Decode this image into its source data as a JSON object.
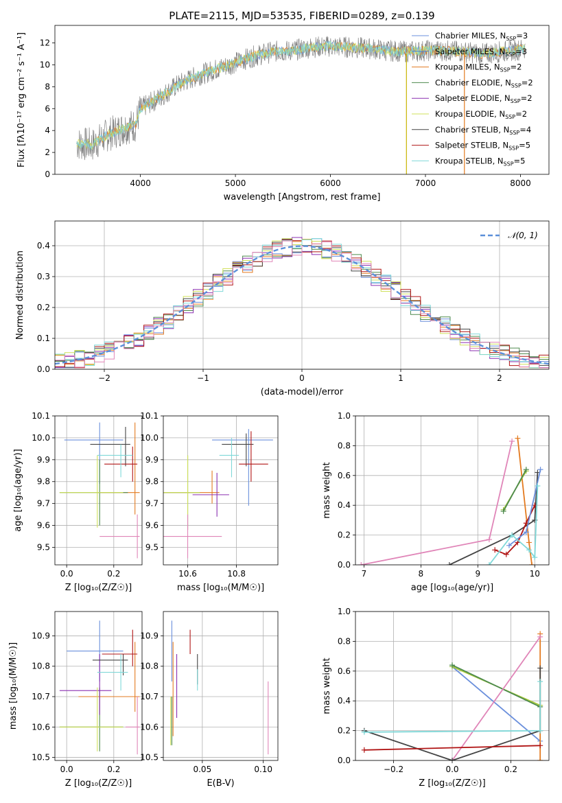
{
  "figure": {
    "title": "PLATE=2115, MJD=53535, FIBERID=0289, z=0.139"
  },
  "colors": {
    "Chabrier MILES": "#6a8fdc",
    "Salpeter MILES": "#4a7fd0",
    "Kroupa MILES": "#e37a1f",
    "Chabrier ELODIE": "#4d8a4d",
    "Salpeter ELODIE": "#8a2fb0",
    "Kroupa ELODIE": "#cfe05a",
    "Chabrier STELIB": "#444444",
    "Salpeter STELIB": "#b01414",
    "Kroupa STELIB": "#7fd8d8",
    "pink": "#e085b8",
    "yellowgreen": "#a8c83a",
    "spectrum_grey": "#808080",
    "normal_curve": "#5b8fd9"
  },
  "chart_data": [
    {
      "id": "spectrum",
      "type": "line",
      "xlabel": "wavelength [Angstrom, rest frame]",
      "ylabel": "Flux [fλ10⁻¹⁷ erg cm⁻² s⁻¹ A⁻¹]",
      "xlim": [
        3100,
        8300
      ],
      "ylim": [
        0,
        13.6
      ],
      "xticks": [
        4000,
        5000,
        6000,
        7000,
        8000
      ],
      "yticks": [
        0,
        2,
        4,
        6,
        8,
        10,
        12
      ],
      "legend": [
        "Chabrier MILES, N_SSP=3",
        "Salpeter MILES, N_SSP=3",
        "Kroupa MILES, N_SSP=2",
        "Chabrier ELODIE, N_SSP=2",
        "Salpeter ELODIE, N_SSP=2",
        "Kroupa ELODIE, N_SSP=2",
        "Chabrier STELIB, N_SSP=4",
        "Salpeter STELIB, N_SSP=5",
        "Kroupa STELIB, N_SSP=5"
      ],
      "legend_text": [
        {
          "pre": "Chabrier MILES, N",
          "sub": "SSP",
          "post": "=3"
        },
        {
          "pre": "Salpeter MILES, N",
          "sub": "SSP",
          "post": "=3"
        },
        {
          "pre": "Kroupa MILES, N",
          "sub": "SSP",
          "post": "=2"
        },
        {
          "pre": "Chabrier ELODIE, N",
          "sub": "SSP",
          "post": "=2"
        },
        {
          "pre": "Salpeter ELODIE, N",
          "sub": "SSP",
          "post": "=2"
        },
        {
          "pre": "Kroupa ELODIE, N",
          "sub": "SSP",
          "post": "=2"
        },
        {
          "pre": "Chabrier STELIB, N",
          "sub": "SSP",
          "post": "=4"
        },
        {
          "pre": "Salpeter STELIB, N",
          "sub": "SSP",
          "post": "=5"
        },
        {
          "pre": "Kroupa STELIB, N",
          "sub": "SSP",
          "post": "=5"
        }
      ],
      "continuum_x": [
        3330,
        3500,
        3650,
        3850,
        3950,
        4000,
        4200,
        4400,
        4600,
        4800,
        5000,
        5200,
        5400,
        5600,
        5800,
        6000,
        6200,
        6400,
        6600,
        6800,
        7000,
        7200,
        7400,
        7600,
        7800,
        8000,
        8050
      ],
      "continuum_y": [
        2.8,
        2.7,
        3.6,
        4.3,
        4.5,
        6.0,
        7.0,
        8.2,
        9.0,
        9.6,
        10.2,
        10.8,
        11.2,
        11.3,
        11.6,
        11.7,
        11.6,
        11.5,
        11.3,
        11.2,
        11.3,
        11.3,
        11.2,
        11.0,
        11.2,
        11.4,
        11.5
      ]
    },
    {
      "id": "residuals",
      "type": "area",
      "xlabel": "(data-model)/error",
      "ylabel": "Normed distribution",
      "xlim": [
        -2.5,
        2.5
      ],
      "ylim": [
        0,
        0.48
      ],
      "xticks": [
        -2,
        -1,
        0,
        1,
        2
      ],
      "xticklabels": [
        "−2",
        "−1",
        "0",
        "1",
        "2"
      ],
      "yticks": [
        0.0,
        0.1,
        0.2,
        0.3,
        0.4
      ],
      "yticklabels": [
        "0.0",
        "0.1",
        "0.2",
        "0.3",
        "0.4"
      ],
      "legend": [
        "𝒩(0, 1)"
      ],
      "bin_width": 0.1
    },
    {
      "id": "age_vs_Z",
      "type": "scatter",
      "xlabel": "Z [log₁₀(Z/Z☉)]",
      "ylabel": "age  [log₁₀(age/yr)]",
      "xlim": [
        -0.05,
        0.32
      ],
      "ylim": [
        9.42,
        10.1
      ],
      "xticks": [
        0.0,
        0.2
      ],
      "xticklabels": [
        "0.0",
        "0.2"
      ],
      "yticks": [
        9.5,
        9.6,
        9.7,
        9.8,
        9.9,
        10.0,
        10.1
      ],
      "yticklabels": [
        "9.5",
        "9.6",
        "9.7",
        "9.8",
        "9.9",
        "10.0",
        "10.1"
      ],
      "points": [
        {
          "c": "Chabrier MILES",
          "x": 0.14,
          "y": 9.99,
          "xerr": [
            0.15,
            0.1
          ],
          "yerr": [
            0.2,
            0.08
          ]
        },
        {
          "c": "Kroupa MILES",
          "x": 0.29,
          "y": 9.75,
          "xerr": [
            0.15,
            0.02
          ],
          "yerr": [
            0.1,
            0.32
          ]
        },
        {
          "c": "Chabrier ELODIE",
          "x": 0.14,
          "y": 9.75,
          "xerr": [
            0.17,
            0.12
          ],
          "yerr": [
            0.15,
            0.15
          ]
        },
        {
          "c": "Kroupa ELODIE",
          "x": 0.13,
          "y": 9.75,
          "xerr": [
            0.16,
            0.11
          ],
          "yerr": [
            0.16,
            0.17
          ]
        },
        {
          "c": "Chabrier STELIB",
          "x": 0.25,
          "y": 9.97,
          "xerr": [
            0.15,
            0.02
          ],
          "yerr": [
            0.1,
            0.08
          ]
        },
        {
          "c": "Salpeter STELIB",
          "x": 0.28,
          "y": 9.88,
          "xerr": [
            0.12,
            0.02
          ],
          "yerr": [
            0.08,
            0.08
          ]
        },
        {
          "c": "Kroupa STELIB",
          "x": 0.23,
          "y": 9.92,
          "xerr": [
            0.1,
            0.05
          ],
          "yerr": [
            0.1,
            0.05
          ]
        },
        {
          "c": "pink",
          "x": 0.3,
          "y": 9.55,
          "xerr": [
            0.16,
            0.01
          ],
          "yerr": [
            0.1,
            0.1
          ]
        }
      ]
    },
    {
      "id": "age_vs_mass",
      "type": "scatter",
      "xlabel": "mass [log₁₀(M/M☉)]",
      "ylabel": "",
      "xlim": [
        10.5,
        10.97
      ],
      "ylim": [
        9.42,
        10.1
      ],
      "xticks": [
        10.6,
        10.8
      ],
      "xticklabels": [
        "10.6",
        "10.8"
      ],
      "yticks": [
        9.5,
        9.6,
        9.7,
        9.8,
        9.9,
        10.0,
        10.1
      ],
      "yticklabels": [
        "9.5",
        "9.6",
        "9.7",
        "9.8",
        "9.9",
        "10.0",
        "10.1"
      ],
      "points": [
        {
          "c": "Chabrier MILES",
          "x": 10.85,
          "y": 9.99,
          "xerr": [
            0.15,
            0.1
          ],
          "yerr": [
            0.3,
            0.05
          ]
        },
        {
          "c": "Kroupa MILES",
          "x": 10.7,
          "y": 9.75,
          "xerr": [
            0.2,
            0.03
          ],
          "yerr": [
            0.05,
            0.1
          ]
        },
        {
          "c": "Chabrier ELODIE",
          "x": 10.6,
          "y": 9.75,
          "xerr": [
            0.1,
            0.05
          ],
          "yerr": [
            0.17,
            0.17
          ]
        },
        {
          "c": "Salpeter ELODIE",
          "x": 10.72,
          "y": 9.74,
          "xerr": [
            0.1,
            0.05
          ],
          "yerr": [
            0.1,
            0.1
          ]
        },
        {
          "c": "Kroupa ELODIE",
          "x": 10.6,
          "y": 9.75,
          "xerr": [
            0.1,
            0.05
          ],
          "yerr": [
            0.17,
            0.17
          ]
        },
        {
          "c": "Chabrier STELIB",
          "x": 10.84,
          "y": 9.97,
          "xerr": [
            0.1,
            0.03
          ],
          "yerr": [
            0.1,
            0.05
          ]
        },
        {
          "c": "Salpeter STELIB",
          "x": 10.86,
          "y": 9.88,
          "xerr": [
            0.05,
            0.07
          ],
          "yerr": [
            0.08,
            0.15
          ]
        },
        {
          "c": "Kroupa STELIB",
          "x": 10.78,
          "y": 9.92,
          "xerr": [
            0.05,
            0.03
          ],
          "yerr": [
            0.1,
            0.08
          ]
        },
        {
          "c": "pink",
          "x": 10.6,
          "y": 9.55,
          "xerr": [
            0.1,
            0.14
          ],
          "yerr": [
            0.1,
            0.1
          ]
        }
      ]
    },
    {
      "id": "weight_vs_age",
      "type": "line",
      "xlabel": "age  [log₁₀(age/yr)]",
      "ylabel": "mass weight",
      "xlim": [
        6.85,
        10.25
      ],
      "ylim": [
        0,
        1.0
      ],
      "xticks": [
        7,
        8,
        9,
        10
      ],
      "xticklabels": [
        "7",
        "8",
        "9",
        "10"
      ],
      "yticks": [
        0.0,
        0.2,
        0.4,
        0.6,
        0.8,
        1.0
      ],
      "yticklabels": [
        "0.0",
        "0.2",
        "0.4",
        "0.6",
        "0.8",
        "1.0"
      ],
      "lines": [
        {
          "c": "pink",
          "x": [
            6.95,
            9.2,
            9.6
          ],
          "y": [
            0.0,
            0.17,
            0.83
          ]
        },
        {
          "c": "Kroupa MILES",
          "x": [
            9.7,
            9.9,
            9.95
          ],
          "y": [
            0.85,
            0.15,
            0.0
          ]
        },
        {
          "c": "Chabrier STELIB",
          "x": [
            8.5,
            9.6,
            10.0,
            10.05
          ],
          "y": [
            0.0,
            0.2,
            0.3,
            0.62
          ]
        },
        {
          "c": "Salpeter STELIB",
          "x": [
            9.3,
            9.5,
            9.7,
            9.85,
            10.0
          ],
          "y": [
            0.1,
            0.07,
            0.15,
            0.28,
            0.4
          ]
        },
        {
          "c": "yellowgreen",
          "x": [
            9.45,
            9.85
          ],
          "y": [
            0.37,
            0.63
          ]
        },
        {
          "c": "Chabrier ELODIE",
          "x": [
            9.45,
            9.85
          ],
          "y": [
            0.36,
            0.64
          ]
        },
        {
          "c": "Chabrier MILES",
          "x": [
            9.55,
            9.85,
            10.1
          ],
          "y": [
            0.13,
            0.22,
            0.64
          ]
        },
        {
          "c": "Kroupa STELIB",
          "x": [
            9.2,
            9.6,
            9.9,
            10.0,
            10.05
          ],
          "y": [
            0.0,
            0.2,
            0.1,
            0.05,
            0.53
          ]
        }
      ]
    },
    {
      "id": "mass_vs_Z",
      "type": "scatter",
      "xlabel": "Z [log₁₀(Z/Z☉)]",
      "ylabel": "mass [log₁₀(M/M☉)]",
      "xlim": [
        -0.05,
        0.32
      ],
      "ylim": [
        10.49,
        10.98
      ],
      "xticks": [
        0.0,
        0.2
      ],
      "xticklabels": [
        "0.0",
        "0.2"
      ],
      "yticks": [
        10.5,
        10.6,
        10.7,
        10.8,
        10.9
      ],
      "yticklabels": [
        "10.5",
        "10.6",
        "10.7",
        "10.8",
        "10.9"
      ],
      "points": [
        {
          "c": "Chabrier MILES",
          "x": 0.14,
          "y": 10.85,
          "xerr": [
            0.14,
            0.1
          ],
          "yerr": [
            0.1,
            0.1
          ]
        },
        {
          "c": "Kroupa MILES",
          "x": 0.29,
          "y": 10.7,
          "xerr": [
            0.24,
            0.02
          ],
          "yerr": [
            0.05,
            0.18
          ]
        },
        {
          "c": "Chabrier ELODIE",
          "x": 0.14,
          "y": 10.6,
          "xerr": [
            0.17,
            0.1
          ],
          "yerr": [
            0.08,
            0.13
          ]
        },
        {
          "c": "Salpeter ELODIE",
          "x": 0.14,
          "y": 10.72,
          "xerr": [
            0.17,
            0.05
          ],
          "yerr": [
            0.08,
            0.12
          ]
        },
        {
          "c": "Kroupa ELODIE",
          "x": 0.13,
          "y": 10.6,
          "xerr": [
            0.16,
            0.11
          ],
          "yerr": [
            0.08,
            0.13
          ]
        },
        {
          "c": "Chabrier STELIB",
          "x": 0.24,
          "y": 10.82,
          "xerr": [
            0.13,
            0.02
          ],
          "yerr": [
            0.05,
            0.02
          ]
        },
        {
          "c": "Salpeter STELIB",
          "x": 0.28,
          "y": 10.84,
          "xerr": [
            0.13,
            0.02
          ],
          "yerr": [
            0.04,
            0.08
          ]
        },
        {
          "c": "Kroupa STELIB",
          "x": 0.23,
          "y": 10.78,
          "xerr": [
            0.1,
            0.03
          ],
          "yerr": [
            0.06,
            0.06
          ]
        },
        {
          "c": "pink",
          "x": 0.3,
          "y": 10.6,
          "xerr": [
            0.05,
            0.01
          ],
          "yerr": [
            0.09,
            0.1
          ]
        }
      ]
    },
    {
      "id": "mass_vs_EBV",
      "type": "scatter",
      "xlabel": "E(B-V)",
      "ylabel": "",
      "xlim": [
        0.018,
        0.112
      ],
      "ylim": [
        10.49,
        10.98
      ],
      "xticks": [
        0.05,
        0.1
      ],
      "xticklabels": [
        "0.05",
        "0.10"
      ],
      "yticks": [
        10.5,
        10.6,
        10.7,
        10.8,
        10.9
      ],
      "yticklabels": [
        "10.5",
        "10.6",
        "10.7",
        "10.8",
        "10.9"
      ],
      "points": [
        {
          "c": "Chabrier MILES",
          "x": 0.025,
          "y": 10.85,
          "yerr": [
            0.1,
            0.1
          ]
        },
        {
          "c": "Kroupa MILES",
          "x": 0.026,
          "y": 10.72,
          "yerr": [
            0.15,
            0.16
          ]
        },
        {
          "c": "Chabrier ELODIE",
          "x": 0.025,
          "y": 10.6,
          "yerr": [
            0.06,
            0.1
          ]
        },
        {
          "c": "Salpeter ELODIE",
          "x": 0.029,
          "y": 10.72,
          "yerr": [
            0.09,
            0.12
          ]
        },
        {
          "c": "Kroupa ELODIE",
          "x": 0.024,
          "y": 10.6,
          "yerr": [
            0.06,
            0.1
          ]
        },
        {
          "c": "Chabrier STELIB",
          "x": 0.046,
          "y": 10.78,
          "yerr": [
            0.04,
            0.06
          ]
        },
        {
          "c": "Salpeter STELIB",
          "x": 0.04,
          "y": 10.88,
          "yerr": [
            0.04,
            0.04
          ]
        },
        {
          "c": "Kroupa STELIB",
          "x": 0.046,
          "y": 10.76,
          "yerr": [
            0.04,
            0.03
          ]
        },
        {
          "c": "pink",
          "x": 0.104,
          "y": 10.63,
          "yerr": [
            0.12,
            0.12
          ]
        }
      ]
    },
    {
      "id": "weight_vs_Z",
      "type": "line",
      "xlabel": "Z [log₁₀(Z/Z☉)]",
      "ylabel": "mass weight",
      "xlim": [
        -0.33,
        0.33
      ],
      "ylim": [
        0,
        1.0
      ],
      "xticks": [
        -0.2,
        0.0,
        0.2
      ],
      "xticklabels": [
        "−0.2",
        "0.0",
        "0.2"
      ],
      "yticks": [
        0.0,
        0.2,
        0.4,
        0.6,
        0.8,
        1.0
      ],
      "yticklabels": [
        "0.0",
        "0.2",
        "0.4",
        "0.6",
        "0.8",
        "1.0"
      ],
      "lines": [
        {
          "c": "Chabrier MILES",
          "x": [
            0.0,
            0.3
          ],
          "y": [
            0.63,
            0.13
          ]
        },
        {
          "c": "yellowgreen",
          "x": [
            0.0,
            0.3
          ],
          "y": [
            0.63,
            0.37
          ]
        },
        {
          "c": "Chabrier ELODIE",
          "x": [
            0.0,
            0.3
          ],
          "y": [
            0.64,
            0.36
          ]
        },
        {
          "c": "Kroupa MILES",
          "x": [
            0.3,
            0.3
          ],
          "y": [
            0.85,
            0.0
          ]
        },
        {
          "c": "pink",
          "x": [
            0.0,
            0.3
          ],
          "y": [
            0.0,
            0.83
          ]
        },
        {
          "c": "Chabrier STELIB",
          "x": [
            -0.3,
            0.0,
            0.3,
            0.3
          ],
          "y": [
            0.2,
            0.0,
            0.2,
            0.62
          ]
        },
        {
          "c": "Kroupa STELIB",
          "x": [
            -0.3,
            0.3,
            0.3
          ],
          "y": [
            0.19,
            0.2,
            0.53
          ]
        },
        {
          "c": "Salpeter STELIB",
          "x": [
            -0.3,
            0.3
          ],
          "y": [
            0.07,
            0.1
          ]
        }
      ]
    }
  ]
}
